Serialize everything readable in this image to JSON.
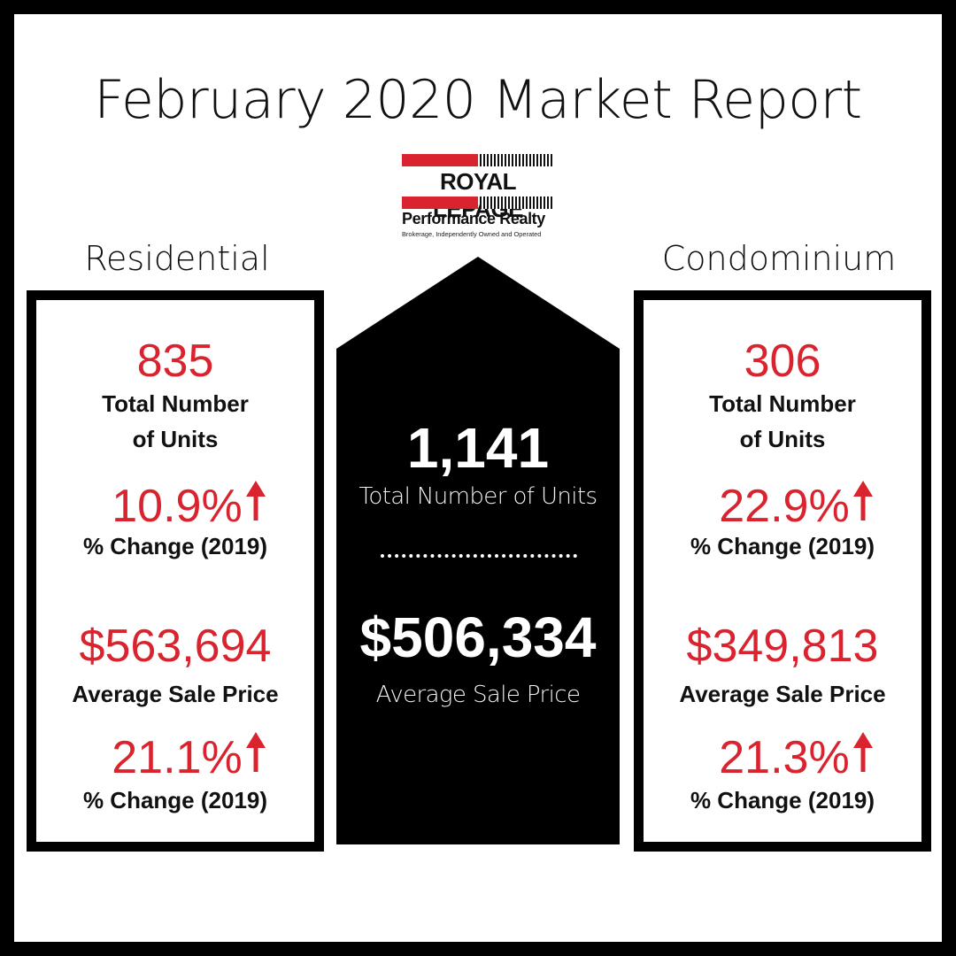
{
  "title": "February 2020 Market Report",
  "logo": {
    "brand": "ROYAL LEPAGE",
    "office": "Performance Realty",
    "tagline": "Brokerage, Independently Owned and Operated"
  },
  "colors": {
    "accent": "#d9232e",
    "dark": "#000000",
    "background": "#ffffff"
  },
  "residential": {
    "heading": "Residential",
    "units": "835",
    "units_label_line1": "Total Number",
    "units_label_line2": "of Units",
    "units_change": "10.9%",
    "change_label": "% Change (2019)",
    "price": "$563,694",
    "price_label": "Average Sale Price",
    "price_change": "21.1%",
    "price_change_label": "% Change (2019)",
    "icon": "arrow-up-icon"
  },
  "total": {
    "units": "1,141",
    "units_label": "Total Number of Units",
    "price": "$506,334",
    "price_label": "Average Sale Price"
  },
  "condominium": {
    "heading": "Condominium",
    "units": "306",
    "units_label_line1": "Total Number",
    "units_label_line2": "of Units",
    "units_change": "22.9%",
    "change_label": "% Change (2019)",
    "price": "$349,813",
    "price_label": "Average Sale Price",
    "price_change": "21.3%",
    "price_change_label": "% Change (2019)",
    "icon": "arrow-up-icon"
  }
}
